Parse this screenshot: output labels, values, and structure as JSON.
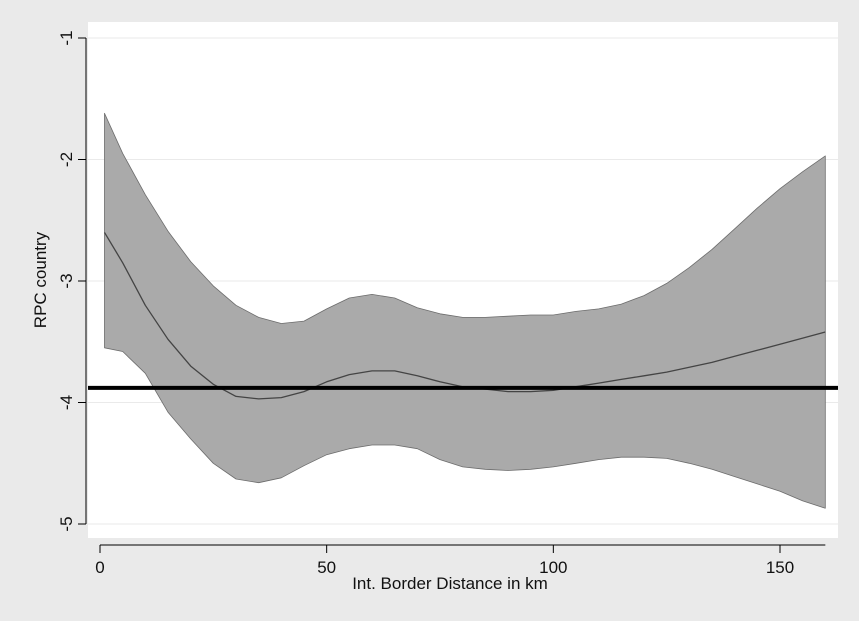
{
  "chart_data": {
    "type": "line",
    "title": "",
    "xlabel": "Int. Border Distance in km",
    "ylabel": "RPC country",
    "xlim": [
      0,
      160
    ],
    "ylim": [
      -5,
      -1
    ],
    "x_ticks": [
      0,
      50,
      100,
      150
    ],
    "x_tick_labels": [
      "0",
      "50",
      "100",
      "150"
    ],
    "y_ticks": [
      -5,
      -4,
      -3,
      -2,
      -1
    ],
    "y_tick_labels": [
      "-5",
      "-4",
      "-3",
      "-2",
      "-1"
    ],
    "grid": "horizontal",
    "legend": "none",
    "series": [
      {
        "kind": "confidence-band",
        "x": [
          1,
          5,
          10,
          15,
          20,
          25,
          30,
          35,
          40,
          45,
          50,
          55,
          60,
          65,
          70,
          75,
          80,
          85,
          90,
          95,
          100,
          105,
          110,
          115,
          120,
          125,
          130,
          135,
          140,
          145,
          150,
          155,
          160
        ],
        "upper": [
          -1.62,
          -1.95,
          -2.29,
          -2.59,
          -2.84,
          -3.04,
          -3.2,
          -3.3,
          -3.35,
          -3.33,
          -3.23,
          -3.14,
          -3.11,
          -3.14,
          -3.22,
          -3.27,
          -3.3,
          -3.3,
          -3.29,
          -3.28,
          -3.28,
          -3.25,
          -3.23,
          -3.19,
          -3.12,
          -3.02,
          -2.89,
          -2.74,
          -2.57,
          -2.4,
          -2.24,
          -2.1,
          -1.97
        ],
        "lower": [
          -3.55,
          -3.58,
          -3.76,
          -4.08,
          -4.3,
          -4.5,
          -4.63,
          -4.66,
          -4.62,
          -4.52,
          -4.43,
          -4.38,
          -4.35,
          -4.35,
          -4.38,
          -4.47,
          -4.53,
          -4.55,
          -4.56,
          -4.55,
          -4.53,
          -4.5,
          -4.47,
          -4.45,
          -4.45,
          -4.46,
          -4.5,
          -4.55,
          -4.61,
          -4.67,
          -4.73,
          -4.81,
          -4.87
        ]
      },
      {
        "kind": "fitted-line",
        "x": [
          1,
          5,
          10,
          15,
          20,
          25,
          30,
          35,
          40,
          45,
          50,
          55,
          60,
          65,
          70,
          75,
          80,
          85,
          90,
          95,
          100,
          105,
          110,
          115,
          120,
          125,
          130,
          135,
          140,
          145,
          150,
          155,
          160
        ],
        "values": [
          -2.6,
          -2.85,
          -3.2,
          -3.48,
          -3.7,
          -3.85,
          -3.95,
          -3.97,
          -3.96,
          -3.91,
          -3.83,
          -3.77,
          -3.74,
          -3.74,
          -3.78,
          -3.83,
          -3.87,
          -3.89,
          -3.91,
          -3.91,
          -3.9,
          -3.87,
          -3.84,
          -3.81,
          -3.78,
          -3.75,
          -3.71,
          -3.67,
          -3.62,
          -3.57,
          -3.52,
          -3.47,
          -3.42
        ]
      },
      {
        "kind": "reference-line",
        "y": -3.88
      }
    ],
    "colors": {
      "outer_background": "#eaeaea",
      "plot_background": "#ffffff",
      "band_fill": "#aaaaaa",
      "band_edge": "#6c6c6c",
      "fitted_line": "#444444",
      "reference_line": "#000000",
      "grid": "#eaeaea"
    }
  }
}
